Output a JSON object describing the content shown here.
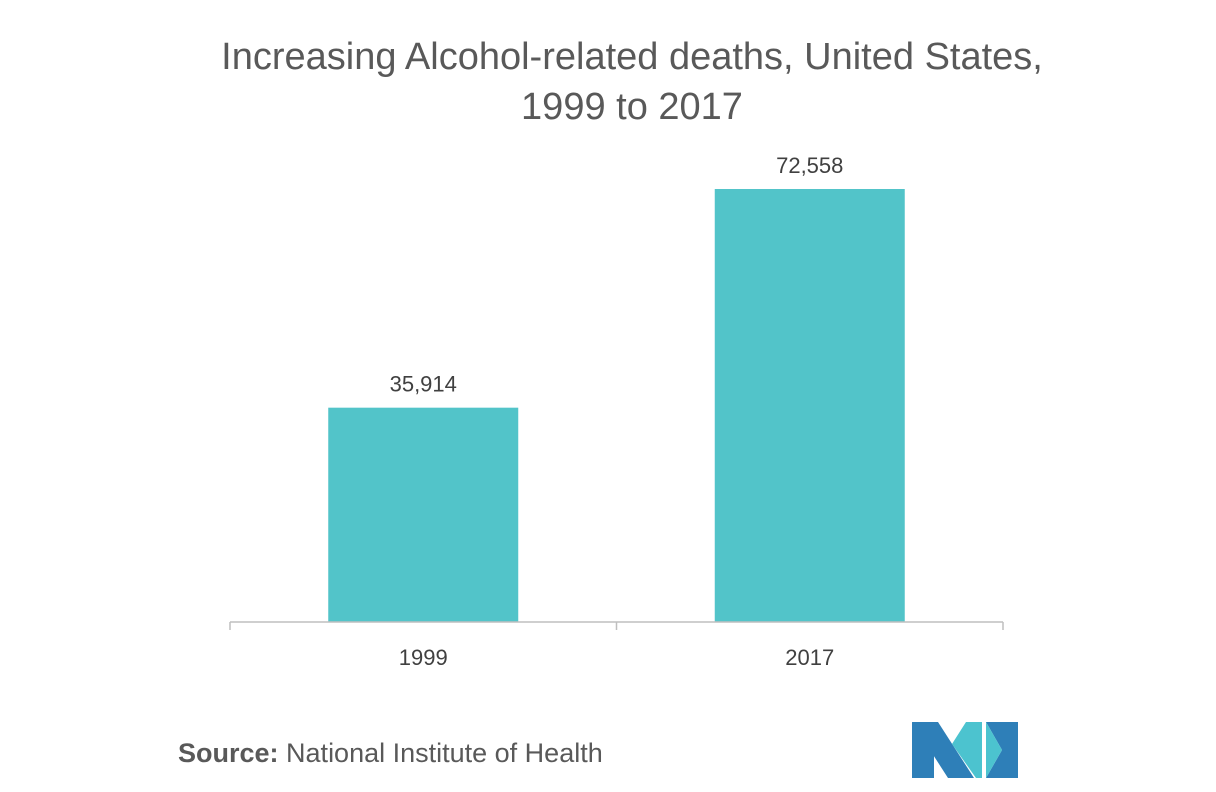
{
  "chart_data": {
    "type": "bar",
    "title_line1": "Increasing Alcohol-related deaths, United States,",
    "title_line2": "1999 to 2017",
    "categories": [
      "1999",
      "2017"
    ],
    "values": [
      35914,
      72558
    ],
    "value_labels": [
      "35,914",
      "72,558"
    ],
    "xlabel": "",
    "ylabel": "",
    "ylim": [
      0,
      72558
    ],
    "grid": false,
    "legend": "none",
    "bar_color": "#52c4c9",
    "axis_color": "#bfbfbf",
    "label_color": "#404040"
  },
  "source": {
    "label": "Source:",
    "text": "National Institute of Health"
  },
  "logo": {
    "icon": "mordor-intelligence-logo",
    "colors": [
      "#2e7fb8",
      "#4cc3cf"
    ]
  }
}
